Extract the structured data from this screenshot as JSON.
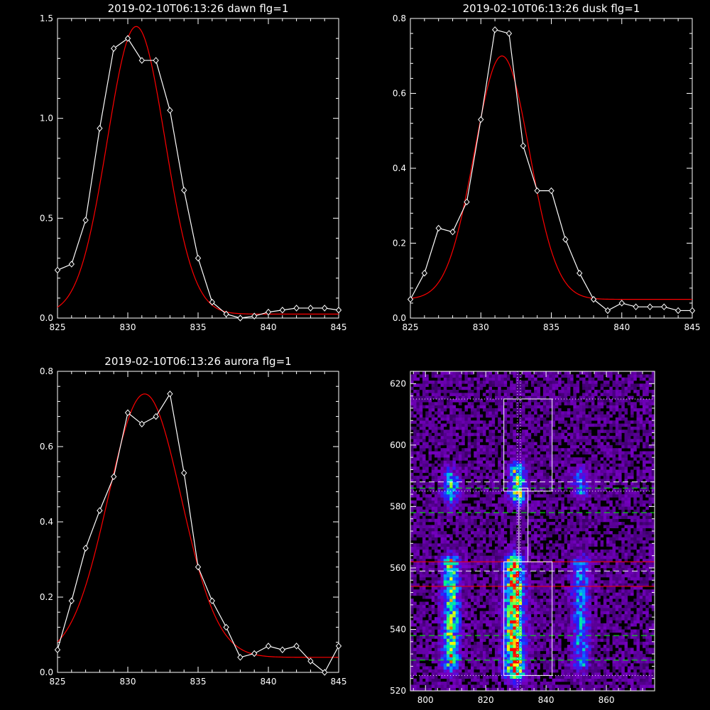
{
  "chart_data": [
    {
      "type": "line",
      "title": "2019-02-10T06:13:26 dawn flg=1",
      "xlim": [
        825,
        845
      ],
      "ylim": [
        0,
        1.5
      ],
      "xticks": [
        "825",
        "830",
        "835",
        "840",
        "845"
      ],
      "yticks": [
        "0.0",
        "0.5",
        "1.0",
        "1.5"
      ],
      "ytick_values": [
        0,
        0.5,
        1.0,
        1.5
      ],
      "grid": false,
      "series": [
        {
          "style": "measured",
          "color": "#ffffff",
          "marker": "diamond",
          "x": [
            825,
            826,
            827,
            828,
            829,
            830,
            831,
            832,
            833,
            834,
            835,
            836,
            837,
            838,
            839,
            840,
            841,
            842,
            843,
            844,
            845
          ],
          "y": [
            0.24,
            0.27,
            0.49,
            0.95,
            1.35,
            1.4,
            1.29,
            1.29,
            1.04,
            0.64,
            0.3,
            0.08,
            0.02,
            0.0,
            0.01,
            0.03,
            0.04,
            0.05,
            0.05,
            0.05,
            0.04
          ]
        },
        {
          "style": "fit",
          "color": "#ff0000",
          "marker": "none",
          "gauss": {
            "amp": 1.44,
            "center": 830.6,
            "sigma": 2.05,
            "offset": 0.02
          }
        }
      ]
    },
    {
      "type": "line",
      "title": "2019-02-10T06:13:26 dusk flg=1",
      "xlim": [
        825,
        845
      ],
      "ylim": [
        0,
        0.8
      ],
      "xticks": [
        "825",
        "830",
        "835",
        "840",
        "845"
      ],
      "yticks": [
        "0.0",
        "0.2",
        "0.4",
        "0.6",
        "0.8"
      ],
      "ytick_values": [
        0,
        0.2,
        0.4,
        0.6,
        0.8
      ],
      "grid": false,
      "series": [
        {
          "style": "measured",
          "color": "#ffffff",
          "marker": "diamond",
          "x": [
            825,
            826,
            827,
            828,
            829,
            830,
            831,
            832,
            833,
            834,
            835,
            836,
            837,
            838,
            839,
            840,
            841,
            842,
            843,
            844,
            845
          ],
          "y": [
            0.05,
            0.12,
            0.24,
            0.23,
            0.31,
            0.53,
            0.77,
            0.76,
            0.46,
            0.34,
            0.34,
            0.21,
            0.12,
            0.05,
            0.02,
            0.04,
            0.03,
            0.03,
            0.03,
            0.02,
            0.02
          ]
        },
        {
          "style": "fit",
          "color": "#ff0000",
          "marker": "none",
          "gauss": {
            "amp": 0.65,
            "center": 831.5,
            "sigma": 1.95,
            "offset": 0.05
          }
        }
      ]
    },
    {
      "type": "line",
      "title": "2019-02-10T06:13:26 aurora flg=1",
      "xlim": [
        825,
        845
      ],
      "ylim": [
        0,
        0.8
      ],
      "xticks": [
        "825",
        "830",
        "835",
        "840",
        "845"
      ],
      "yticks": [
        "0.0",
        "0.2",
        "0.4",
        "0.6",
        "0.8"
      ],
      "ytick_values": [
        0,
        0.2,
        0.4,
        0.6,
        0.8
      ],
      "grid": false,
      "series": [
        {
          "style": "measured",
          "color": "#ffffff",
          "marker": "diamond",
          "x": [
            825,
            826,
            827,
            828,
            829,
            830,
            831,
            832,
            833,
            834,
            835,
            836,
            837,
            838,
            839,
            840,
            841,
            842,
            843,
            844,
            845
          ],
          "y": [
            0.06,
            0.19,
            0.33,
            0.43,
            0.52,
            0.69,
            0.66,
            0.68,
            0.74,
            0.53,
            0.28,
            0.19,
            0.12,
            0.04,
            0.05,
            0.07,
            0.06,
            0.07,
            0.03,
            0.0,
            0.07
          ]
        },
        {
          "style": "fit",
          "color": "#ff0000",
          "marker": "none",
          "gauss": {
            "amp": 0.7,
            "center": 831.2,
            "sigma": 2.6,
            "offset": 0.04
          }
        }
      ]
    },
    {
      "type": "heatmap",
      "title": "",
      "xlim": [
        795,
        876
      ],
      "ylim": [
        520,
        624
      ],
      "xticks": [
        "800",
        "820",
        "840",
        "860"
      ],
      "xtick_values": [
        800,
        820,
        840,
        860
      ],
      "yticks": [
        "520",
        "540",
        "560",
        "580",
        "600",
        "620"
      ],
      "ytick_values": [
        520,
        540,
        560,
        580,
        600,
        620
      ],
      "colormap": [
        "#000000",
        "#4b0082",
        "#7a00c8",
        "#2020ff",
        "#00aaff",
        "#00ff80",
        "#ffff00",
        "#ff0000"
      ],
      "emission_bands": [
        {
          "x": 808.5,
          "width": 2.0,
          "y0": 528,
          "y1": 562,
          "peak": 0.75
        },
        {
          "x": 808.5,
          "width": 1.8,
          "y0": 582,
          "y1": 590,
          "peak": 0.55
        },
        {
          "x": 829.5,
          "width": 2.2,
          "y0": 525,
          "y1": 562,
          "peak": 1.0
        },
        {
          "x": 830.5,
          "width": 1.8,
          "y0": 582,
          "y1": 592,
          "peak": 0.8
        },
        {
          "x": 851.5,
          "width": 2.0,
          "y0": 528,
          "y1": 562,
          "peak": 0.5
        },
        {
          "x": 851.5,
          "width": 1.8,
          "y0": 584,
          "y1": 590,
          "peak": 0.4
        }
      ],
      "boxes": [
        {
          "x0": 826,
          "x1": 842,
          "y0": 585,
          "y1": 615,
          "color": "#ffffff"
        },
        {
          "x0": 831,
          "x1": 834,
          "y0": 562,
          "y1": 586,
          "color": "#ffffff"
        },
        {
          "x0": 826,
          "x1": 842,
          "y0": 525,
          "y1": 562,
          "color": "#ffffff"
        }
      ],
      "hlines": [
        {
          "y": 615,
          "color": "#ffffff",
          "style": "dotted"
        },
        {
          "y": 588,
          "color": "#ffffff",
          "style": "dashed"
        },
        {
          "y": 586,
          "color": "#00ff00",
          "style": "dashed"
        },
        {
          "y": 585,
          "color": "#ffffff",
          "style": "dotted"
        },
        {
          "y": 578,
          "color": "#00ff00",
          "style": "dashed"
        },
        {
          "y": 562,
          "color": "#ff0000",
          "style": "solid"
        },
        {
          "y": 559,
          "color": "#ffffff",
          "style": "dashed"
        },
        {
          "y": 554,
          "color": "#ff0000",
          "style": "solid"
        },
        {
          "y": 538,
          "color": "#00ff00",
          "style": "dashed"
        },
        {
          "y": 530,
          "color": "#00ff00",
          "style": "dashed"
        },
        {
          "y": 525,
          "color": "#ffffff",
          "style": "dotted"
        }
      ],
      "vlines": [
        {
          "x": 830.5,
          "color": "#ffffff",
          "style": "dotted"
        },
        {
          "x": 831.5,
          "color": "#ffffff",
          "style": "dotted"
        }
      ]
    }
  ]
}
